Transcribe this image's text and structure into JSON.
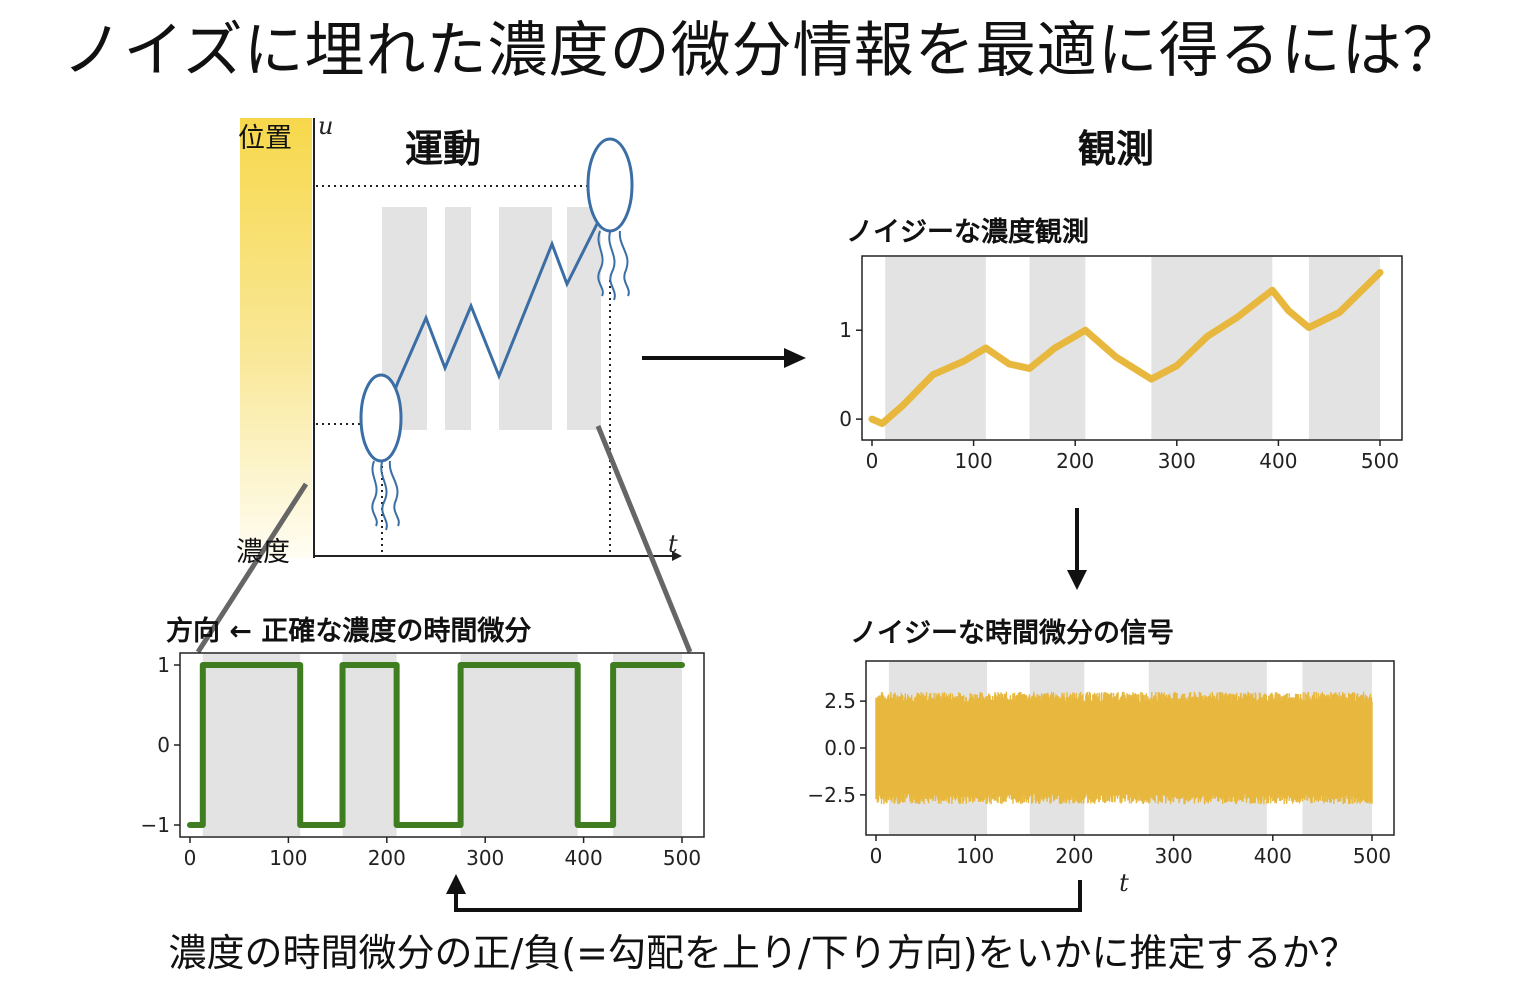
{
  "title": "ノイズに埋れた濃度の微分情報を最適に得るには？",
  "footer": "濃度の時間微分の正/負(=勾配を上り/下り方向)をいかに推定するか？",
  "sections": {
    "motion": "運動",
    "observation": "観測"
  },
  "motion_diagram": {
    "position_label": "位置",
    "concentration_label": "濃度",
    "y_axis_symbol": "u",
    "x_axis_symbol": "t",
    "colors": {
      "gradient_top": "#f8dc55",
      "path": "#3a6ea5",
      "shade": "#e3e3e3"
    }
  },
  "panels": {
    "direction": {
      "title": "方向 ← 正確な濃度の時間微分"
    },
    "noisy_concentration": {
      "title": "ノイジーな濃度観測"
    },
    "noisy_derivative": {
      "title": "ノイジーな時間微分の信号",
      "xlabel": "t"
    }
  },
  "colors": {
    "green": "#3f7d20",
    "yellow": "#e8b83e",
    "shade": "#e3e3e3",
    "arrow": "#111111"
  },
  "chart_data": [
    {
      "type": "line",
      "name": "direction",
      "x": [
        0,
        13,
        13,
        112,
        112,
        155,
        155,
        210,
        210,
        275,
        275,
        394,
        394,
        430,
        430,
        500
      ],
      "y": [
        -1,
        -1,
        1,
        1,
        -1,
        -1,
        1,
        1,
        -1,
        -1,
        1,
        1,
        -1,
        -1,
        1,
        1
      ],
      "shaded_intervals": [
        [
          13,
          112
        ],
        [
          155,
          210
        ],
        [
          275,
          394
        ],
        [
          430,
          500
        ]
      ],
      "xlim": [
        0,
        500
      ],
      "ylim": [
        -1,
        1
      ],
      "xticks": [
        0,
        100,
        200,
        300,
        400,
        500
      ],
      "yticks": [
        -1,
        0,
        1
      ],
      "ytick_labels": [
        "−1",
        "0",
        "1"
      ]
    },
    {
      "type": "line",
      "name": "noisy_concentration",
      "x": [
        0,
        10,
        30,
        60,
        90,
        112,
        135,
        155,
        180,
        210,
        240,
        275,
        300,
        330,
        360,
        394,
        410,
        430,
        460,
        500
      ],
      "y": [
        0.0,
        -0.05,
        0.15,
        0.5,
        0.65,
        0.8,
        0.62,
        0.57,
        0.8,
        1.0,
        0.7,
        0.45,
        0.6,
        0.93,
        1.15,
        1.45,
        1.22,
        1.03,
        1.2,
        1.65
      ],
      "shaded_intervals": [
        [
          13,
          112
        ],
        [
          155,
          210
        ],
        [
          275,
          394
        ],
        [
          430,
          500
        ]
      ],
      "xlim": [
        0,
        500
      ],
      "ylim": [
        -0.1,
        1.7
      ],
      "xticks": [
        0,
        100,
        200,
        300,
        400,
        500
      ],
      "yticks": [
        0,
        1
      ]
    },
    {
      "type": "line",
      "name": "noisy_derivative",
      "description_of_values": "dense noise band",
      "band_center": 0.0,
      "band_halfwidth": 3.0,
      "shaded_intervals": [
        [
          13,
          112
        ],
        [
          155,
          210
        ],
        [
          275,
          394
        ],
        [
          430,
          500
        ]
      ],
      "xlim": [
        0,
        500
      ],
      "ylim": [
        -4.0,
        4.0
      ],
      "xticks": [
        0,
        100,
        200,
        300,
        400,
        500
      ],
      "yticks": [
        -2.5,
        0.0,
        2.5
      ],
      "ytick_labels": [
        "−2.5",
        "0.0",
        "2.5"
      ],
      "xlabel": "t"
    }
  ]
}
